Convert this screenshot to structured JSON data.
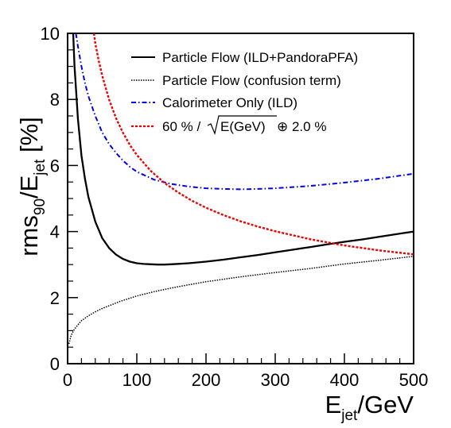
{
  "chart_data": {
    "type": "line",
    "xlabel": {
      "main": "E",
      "sub": "jet",
      "rest": "/GeV"
    },
    "ylabel": {
      "pre": "rms",
      "sub1": "90",
      "mid": "/E",
      "sub2": "jet",
      "rest": " [%]"
    },
    "xlim": [
      0,
      500
    ],
    "ylim": [
      0,
      10
    ],
    "x_ticks": [
      0,
      100,
      200,
      300,
      400,
      500
    ],
    "y_ticks": [
      0,
      2,
      4,
      6,
      8,
      10
    ],
    "grid": false,
    "legend_placement": "top-right",
    "series": [
      {
        "name": "Particle Flow (ILD+PandoraPFA)",
        "color": "#000000",
        "dash": "solid",
        "x": [
          8,
          10,
          15,
          20,
          25,
          30,
          40,
          50,
          60,
          70,
          80,
          90,
          100,
          110,
          120,
          130,
          140,
          150,
          175,
          200,
          225,
          250,
          275,
          300,
          325,
          350,
          375,
          400,
          425,
          450,
          475,
          500
        ],
        "y": [
          10.0,
          9.0,
          7.4,
          6.3,
          5.6,
          5.05,
          4.3,
          3.8,
          3.5,
          3.3,
          3.17,
          3.09,
          3.04,
          3.02,
          3.01,
          3.0,
          3.0,
          3.01,
          3.04,
          3.09,
          3.15,
          3.22,
          3.29,
          3.37,
          3.45,
          3.53,
          3.61,
          3.69,
          3.76,
          3.84,
          3.92,
          4.0
        ]
      },
      {
        "name": "Particle Flow (confusion term)",
        "color": "#000000",
        "dash": "dotted",
        "x": [
          2,
          5,
          10,
          20,
          30,
          40,
          50,
          75,
          100,
          125,
          150,
          175,
          200,
          250,
          300,
          350,
          400,
          450,
          500
        ],
        "y": [
          0.6,
          0.85,
          1.05,
          1.3,
          1.45,
          1.57,
          1.67,
          1.88,
          2.05,
          2.18,
          2.29,
          2.39,
          2.48,
          2.63,
          2.76,
          2.88,
          3.02,
          3.13,
          3.25
        ]
      },
      {
        "name": "Calorimeter Only (ILD)",
        "color": "#0000ee",
        "dash": "dashdot",
        "x": [
          12,
          15,
          20,
          25,
          30,
          40,
          50,
          60,
          70,
          80,
          90,
          100,
          125,
          150,
          175,
          200,
          225,
          250,
          275,
          300,
          350,
          400,
          450,
          500
        ],
        "y": [
          10.0,
          9.6,
          9.0,
          8.5,
          8.1,
          7.5,
          7.0,
          6.65,
          6.38,
          6.15,
          5.96,
          5.81,
          5.57,
          5.44,
          5.36,
          5.31,
          5.29,
          5.28,
          5.29,
          5.31,
          5.38,
          5.48,
          5.6,
          5.75
        ]
      },
      {
        "name": "60 % /√E(GeV) ⊕ 2.0 %",
        "color": "#ee0000",
        "dash": "dashed",
        "x": [
          38,
          40,
          45,
          50,
          60,
          70,
          80,
          90,
          100,
          120,
          140,
          160,
          180,
          200,
          225,
          250,
          275,
          300,
          350,
          400,
          450,
          500
        ],
        "y": [
          10.0,
          9.7,
          9.16,
          8.72,
          7.99,
          7.43,
          6.99,
          6.62,
          6.32,
          5.84,
          5.47,
          5.18,
          4.93,
          4.72,
          4.5,
          4.31,
          4.15,
          4.01,
          3.77,
          3.58,
          3.43,
          3.31
        ]
      }
    ]
  },
  "legend": {
    "items": [
      {
        "label": "Particle Flow (ILD+PandoraPFA)"
      },
      {
        "label": "Particle Flow (confusion term)"
      },
      {
        "label": "Calorimeter Only (ILD)"
      },
      {
        "pre": "60 % /",
        "root": "E(GeV)",
        "post": " ⊕ 2.0 %"
      }
    ]
  }
}
